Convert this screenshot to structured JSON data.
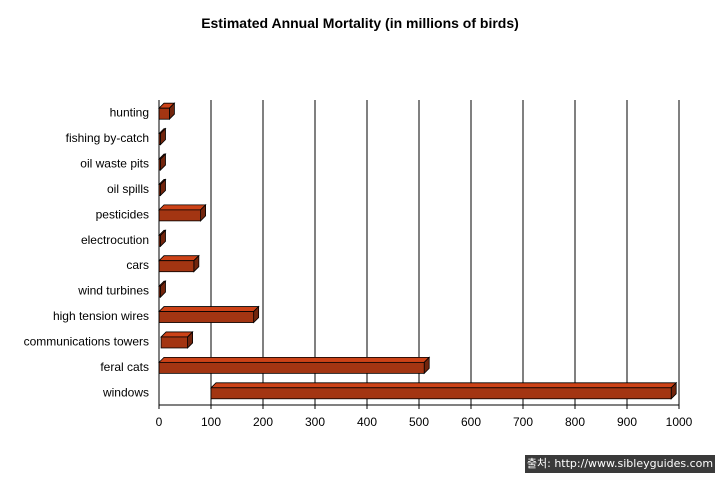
{
  "chart_data": {
    "type": "bar",
    "orientation": "horizontal",
    "title": "Estimated Annual Mortality (in millions of birds)",
    "categories": [
      "hunting",
      "fishing by-catch",
      "oil waste pits",
      "oil spills",
      "pesticides",
      "electrocution",
      "cars",
      "wind turbines",
      "high tension wires",
      "communications towers",
      "feral cats",
      "windows"
    ],
    "ranges": [
      [
        0,
        20
      ],
      [
        0,
        2
      ],
      [
        0,
        2
      ],
      [
        0,
        1
      ],
      [
        0,
        80
      ],
      [
        0,
        1
      ],
      [
        0,
        67
      ],
      [
        0,
        1
      ],
      [
        0,
        182
      ],
      [
        4,
        55
      ],
      [
        0,
        510
      ],
      [
        100,
        985
      ]
    ],
    "xlim": [
      0,
      1000
    ],
    "xticks": [
      "0",
      "100",
      "200",
      "300",
      "400",
      "500",
      "600",
      "700",
      "800",
      "900",
      "1000"
    ],
    "grid": "vertical",
    "bar_color": "#a33512"
  },
  "source_credit": "출처: http://www.sibleyguides.com"
}
